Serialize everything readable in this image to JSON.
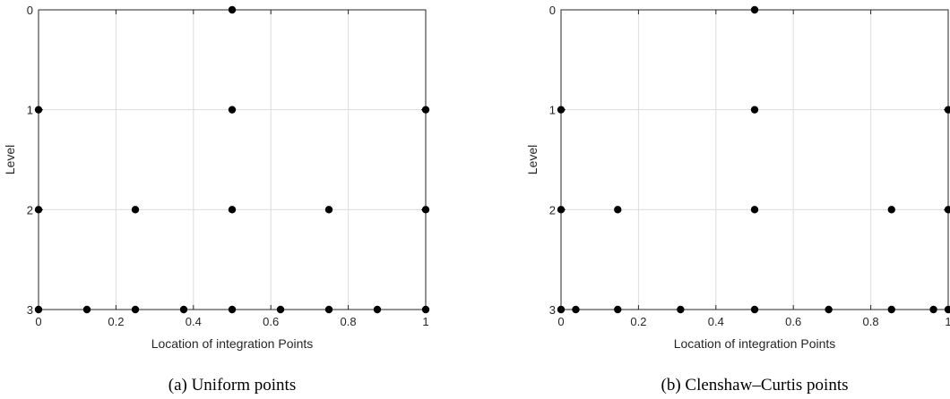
{
  "chart_data": [
    {
      "type": "scatter",
      "caption": "(a) Uniform points",
      "xlabel": "Location of integration Points",
      "ylabel": "Level",
      "xlim": [
        0,
        1
      ],
      "ylim": [
        0,
        3
      ],
      "y_reversed": true,
      "grid": true,
      "x_ticks": [
        0,
        0.2,
        0.4,
        0.6,
        0.8,
        1
      ],
      "x_tick_labels": [
        "0",
        "0.2",
        "0.4",
        "0.6",
        "0.8",
        "1"
      ],
      "y_ticks": [
        0,
        1,
        2,
        3
      ],
      "y_tick_labels": [
        "0",
        "1",
        "2",
        "3"
      ],
      "marker_color": "#000000",
      "grid_color": "#dcdcdc",
      "points": [
        {
          "x": 0.5,
          "y": 0
        },
        {
          "x": 0,
          "y": 1
        },
        {
          "x": 0.5,
          "y": 1
        },
        {
          "x": 1,
          "y": 1
        },
        {
          "x": 0,
          "y": 2
        },
        {
          "x": 0.25,
          "y": 2
        },
        {
          "x": 0.5,
          "y": 2
        },
        {
          "x": 0.75,
          "y": 2
        },
        {
          "x": 1,
          "y": 2
        },
        {
          "x": 0,
          "y": 3
        },
        {
          "x": 0.125,
          "y": 3
        },
        {
          "x": 0.25,
          "y": 3
        },
        {
          "x": 0.375,
          "y": 3
        },
        {
          "x": 0.5,
          "y": 3
        },
        {
          "x": 0.625,
          "y": 3
        },
        {
          "x": 0.75,
          "y": 3
        },
        {
          "x": 0.875,
          "y": 3
        },
        {
          "x": 1,
          "y": 3
        }
      ]
    },
    {
      "type": "scatter",
      "caption": "(b) Clenshaw–Curtis points",
      "xlabel": "Location of integration Points",
      "ylabel": "Level",
      "xlim": [
        0,
        1
      ],
      "ylim": [
        0,
        3
      ],
      "y_reversed": true,
      "grid": true,
      "x_ticks": [
        0,
        0.2,
        0.4,
        0.6,
        0.8,
        1
      ],
      "x_tick_labels": [
        "0",
        "0.2",
        "0.4",
        "0.6",
        "0.8",
        "1"
      ],
      "y_ticks": [
        0,
        1,
        2,
        3
      ],
      "y_tick_labels": [
        "0",
        "1",
        "2",
        "3"
      ],
      "marker_color": "#000000",
      "grid_color": "#dcdcdc",
      "points": [
        {
          "x": 0.5,
          "y": 0
        },
        {
          "x": 0,
          "y": 1
        },
        {
          "x": 0.5,
          "y": 1
        },
        {
          "x": 1,
          "y": 1
        },
        {
          "x": 0,
          "y": 2
        },
        {
          "x": 0.1464,
          "y": 2
        },
        {
          "x": 0.5,
          "y": 2
        },
        {
          "x": 0.8536,
          "y": 2
        },
        {
          "x": 1,
          "y": 2
        },
        {
          "x": 0,
          "y": 3
        },
        {
          "x": 0.0381,
          "y": 3
        },
        {
          "x": 0.1464,
          "y": 3
        },
        {
          "x": 0.3087,
          "y": 3
        },
        {
          "x": 0.5,
          "y": 3
        },
        {
          "x": 0.6913,
          "y": 3
        },
        {
          "x": 0.8536,
          "y": 3
        },
        {
          "x": 0.9619,
          "y": 3
        },
        {
          "x": 1,
          "y": 3
        }
      ]
    }
  ]
}
